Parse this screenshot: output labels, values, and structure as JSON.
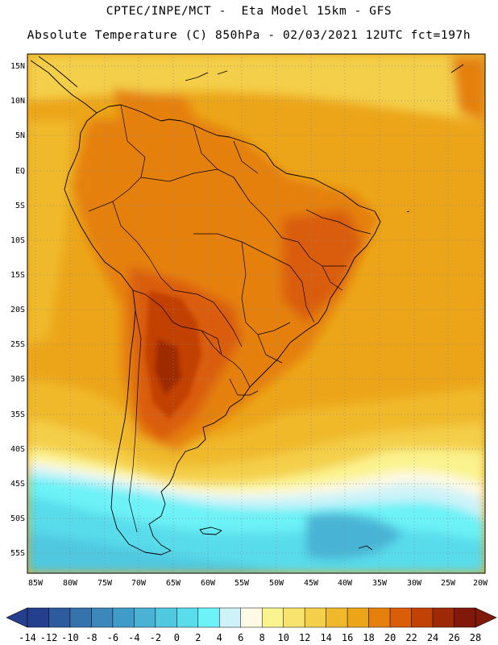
{
  "header": {
    "line1": "CPTEC/INPE/MCT -  Eta Model 15km - GFS",
    "line2": "Absolute Temperature (C) 850hPa - 02/03/2021 12UTC fct=197h"
  },
  "map": {
    "lat_labels": [
      "15N",
      "10N",
      "5N",
      "EQ",
      "5S",
      "10S",
      "15S",
      "20S",
      "25S",
      "30S",
      "35S",
      "40S",
      "45S",
      "50S",
      "55S"
    ],
    "lon_labels": [
      "85W",
      "80W",
      "75W",
      "70W",
      "65W",
      "60W",
      "55W",
      "50W",
      "45W",
      "40W",
      "35W",
      "30W",
      "25W",
      "20W"
    ]
  },
  "colorbar": {
    "labels": [
      "-14",
      "-12",
      "-10",
      "-8",
      "-6",
      "-4",
      "-2",
      "0",
      "2",
      "4",
      "6",
      "8",
      "10",
      "12",
      "14",
      "16",
      "18",
      "20",
      "22",
      "24",
      "26",
      "28"
    ],
    "colors": [
      "#253f8f",
      "#2d5b9e",
      "#3673ad",
      "#3d88bb",
      "#3f9cc8",
      "#4ab3d5",
      "#50c8e0",
      "#59dceb",
      "#6cf2f7",
      "#cdf3f9",
      "#fdf9e4",
      "#fbf38e",
      "#f8e36e",
      "#f4cf4a",
      "#f0b92c",
      "#eca519",
      "#e5800d",
      "#da5d08",
      "#c24105",
      "#9e2a05",
      "#80190a"
    ]
  }
}
